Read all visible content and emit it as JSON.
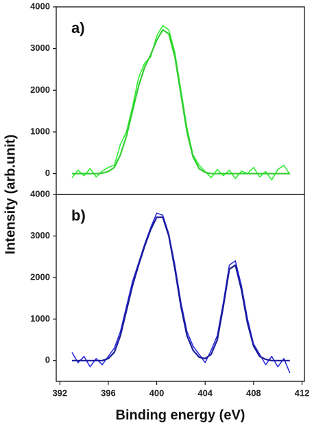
{
  "chart_data": [
    {
      "type": "line",
      "annotations": [
        "a)"
      ],
      "ylabel": "Intensity (arb.unit)",
      "xlim": [
        391.7,
        412.2
      ],
      "ylim": [
        -500,
        4000
      ],
      "yticks": [
        0,
        1000,
        2000,
        3000,
        4000
      ],
      "x": [
        393,
        393.5,
        394,
        394.5,
        395,
        395.5,
        396,
        396.5,
        397,
        397.5,
        398,
        398.5,
        399,
        399.5,
        400,
        400.5,
        401,
        401.5,
        402,
        402.5,
        403,
        403.5,
        404,
        404.5,
        405,
        405.5,
        406,
        406.5,
        407,
        407.5,
        408,
        408.5,
        409,
        409.5,
        410,
        410.5,
        411
      ],
      "series": [
        {
          "color": "#22ee22",
          "width": 1.5,
          "values": [
            -100,
            80,
            -50,
            120,
            -80,
            60,
            150,
            200,
            700,
            1000,
            1600,
            2300,
            2650,
            2800,
            3300,
            3550,
            3450,
            2900,
            2000,
            1100,
            450,
            200,
            50,
            -100,
            100,
            -50,
            80,
            -120,
            60,
            0,
            150,
            -80,
            50,
            -150,
            100,
            200,
            -20
          ]
        },
        {
          "color": "#33cc33",
          "width": 2.2,
          "values": [
            0,
            0,
            0,
            0,
            0,
            10,
            50,
            150,
            450,
            900,
            1500,
            2100,
            2550,
            2850,
            3200,
            3450,
            3350,
            2800,
            1900,
            1000,
            400,
            120,
            30,
            0,
            0,
            0,
            0,
            0,
            0,
            0,
            0,
            0,
            0,
            0,
            0,
            0,
            0
          ]
        }
      ]
    },
    {
      "type": "line",
      "annotations": [
        "b)"
      ],
      "xlabel": "Binding energy (eV)",
      "xlim": [
        391.7,
        412.2
      ],
      "ylim": [
        -500,
        4000
      ],
      "yticks": [
        0,
        1000,
        2000,
        3000,
        4000
      ],
      "xticks": [
        392,
        396,
        400,
        404,
        408,
        412
      ],
      "x": [
        393,
        393.5,
        394,
        394.5,
        395,
        395.5,
        396,
        396.5,
        397,
        397.5,
        398,
        398.5,
        399,
        399.5,
        400,
        400.5,
        401,
        401.5,
        402,
        402.5,
        403,
        403.5,
        404,
        404.5,
        405,
        405.5,
        406,
        406.5,
        407,
        407.5,
        408,
        408.5,
        409,
        409.5,
        410,
        410.5,
        411
      ],
      "series": [
        {
          "color": "#2222dd",
          "width": 1.5,
          "values": [
            200,
            -50,
            100,
            -150,
            50,
            -100,
            100,
            300,
            700,
            1300,
            1900,
            2350,
            2800,
            3200,
            3550,
            3500,
            3050,
            2300,
            1400,
            700,
            350,
            150,
            -50,
            250,
            600,
            1400,
            2300,
            2400,
            1800,
            1000,
            400,
            150,
            -100,
            100,
            -150,
            50,
            -300
          ]
        },
        {
          "color": "#1a1a99",
          "width": 2.2,
          "values": [
            0,
            0,
            0,
            0,
            0,
            0,
            50,
            200,
            600,
            1200,
            1800,
            2300,
            2750,
            3150,
            3450,
            3450,
            3000,
            2200,
            1300,
            600,
            250,
            80,
            50,
            150,
            500,
            1300,
            2200,
            2300,
            1700,
            900,
            350,
            100,
            30,
            0,
            0,
            0,
            0
          ]
        }
      ]
    }
  ]
}
